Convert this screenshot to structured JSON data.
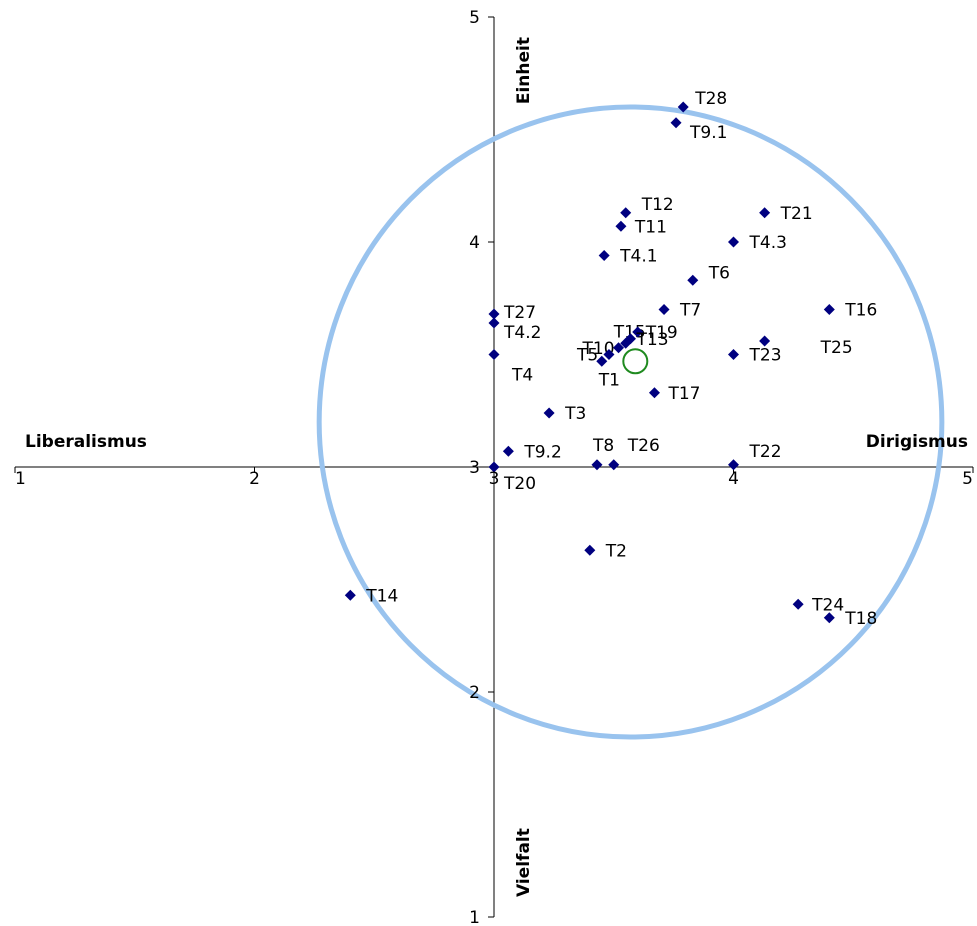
{
  "chart_data": {
    "type": "scatter",
    "title": "",
    "xlim": [
      1,
      5
    ],
    "ylim": [
      1,
      5
    ],
    "x_ticks": [
      "1",
      "2",
      "3",
      "4",
      "5"
    ],
    "y_ticks": [
      "1",
      "2",
      "3",
      "4",
      "5"
    ],
    "axis_labels": {
      "left": "Liberalismus",
      "right": "Dirigismus",
      "top": "Einheit",
      "bottom": "Vielfalt"
    },
    "marker_color": "#000080",
    "ellipse_color": "#99c3ee",
    "center_marker_color": "#1f8a1f",
    "center": {
      "x": 3.59,
      "y": 3.47
    },
    "ellipse": {
      "cx": 3.57,
      "cy": 3.2,
      "rx": 1.3,
      "ry": 1.4
    },
    "points": [
      {
        "label": "T28",
        "x": 3.79,
        "y": 4.6
      },
      {
        "label": "T9.1",
        "x": 3.76,
        "y": 4.53
      },
      {
        "label": "T12",
        "x": 3.55,
        "y": 4.13
      },
      {
        "label": "T11",
        "x": 3.53,
        "y": 4.07
      },
      {
        "label": "T21",
        "x": 4.13,
        "y": 4.13
      },
      {
        "label": "T4.3",
        "x": 4.0,
        "y": 4.0
      },
      {
        "label": "T4.1",
        "x": 3.46,
        "y": 3.94
      },
      {
        "label": "T6",
        "x": 3.83,
        "y": 3.83
      },
      {
        "label": "T27",
        "x": 3.0,
        "y": 3.68
      },
      {
        "label": "T4.2",
        "x": 3.0,
        "y": 3.64
      },
      {
        "label": "T7",
        "x": 3.71,
        "y": 3.7
      },
      {
        "label": "T16",
        "x": 4.4,
        "y": 3.7
      },
      {
        "label": "T15",
        "x": 3.55,
        "y": 3.55
      },
      {
        "label": "T19",
        "x": 3.6,
        "y": 3.6
      },
      {
        "label": "T10",
        "x": 3.52,
        "y": 3.53
      },
      {
        "label": "T5",
        "x": 3.48,
        "y": 3.5
      },
      {
        "label": "T13",
        "x": 3.57,
        "y": 3.57
      },
      {
        "label": "T1",
        "x": 3.45,
        "y": 3.47
      },
      {
        "label": "T4",
        "x": 3.0,
        "y": 3.5
      },
      {
        "label": "T25",
        "x": 4.13,
        "y": 3.56
      },
      {
        "label": "T23",
        "x": 4.0,
        "y": 3.5
      },
      {
        "label": "T17",
        "x": 3.67,
        "y": 3.33
      },
      {
        "label": "T3",
        "x": 3.23,
        "y": 3.24
      },
      {
        "label": "T9.2",
        "x": 3.06,
        "y": 3.07
      },
      {
        "label": "T20",
        "x": 3.0,
        "y": 3.0
      },
      {
        "label": "T8",
        "x": 3.43,
        "y": 3.01
      },
      {
        "label": "T26",
        "x": 3.5,
        "y": 3.01
      },
      {
        "label": "T22",
        "x": 4.0,
        "y": 3.01
      },
      {
        "label": "T2",
        "x": 3.4,
        "y": 2.63
      },
      {
        "label": "T14",
        "x": 2.4,
        "y": 2.43
      },
      {
        "label": "T24",
        "x": 4.27,
        "y": 2.39
      },
      {
        "label": "T18",
        "x": 4.4,
        "y": 2.33
      }
    ]
  }
}
